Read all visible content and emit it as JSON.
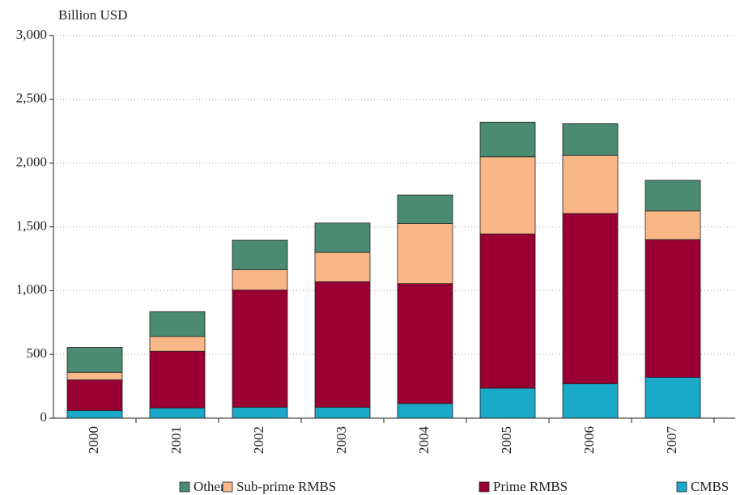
{
  "chart_data": {
    "type": "stacked_bar",
    "y_axis_label": "Billion USD",
    "categories": [
      "2000",
      "2001",
      "2002",
      "2003",
      "2004",
      "2005",
      "2006",
      "2007"
    ],
    "series": [
      {
        "name": "Other",
        "color": "#4b8b72",
        "values": [
          195,
          195,
          230,
          230,
          225,
          270,
          250,
          240
        ]
      },
      {
        "name": "Sub-prime RMBS",
        "color": "#f9b788",
        "values": [
          60,
          115,
          160,
          230,
          470,
          605,
          455,
          225
        ]
      },
      {
        "name": "Prime RMBS",
        "color": "#9a0031",
        "values": [
          240,
          445,
          920,
          985,
          940,
          1210,
          1335,
          1080
        ]
      },
      {
        "name": "CMBS",
        "color": "#1aa9c9",
        "values": [
          60,
          80,
          85,
          85,
          115,
          235,
          270,
          320
        ]
      }
    ],
    "ylim": [
      0,
      3000
    ],
    "yticks": [
      0,
      500,
      {
        "value": 1000,
        "label": "1,000"
      },
      {
        "value": 1500,
        "label": "1,500"
      },
      {
        "value": 2000,
        "label": "2,000"
      },
      {
        "value": 2500,
        "label": "2,500"
      },
      {
        "value": 3000,
        "label": "3,000"
      }
    ],
    "grid": true,
    "legend": "bottom"
  }
}
